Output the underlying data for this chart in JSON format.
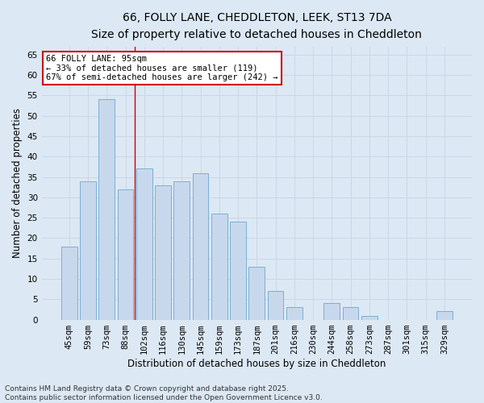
{
  "title_line1": "66, FOLLY LANE, CHEDDLETON, LEEK, ST13 7DA",
  "title_line2": "Size of property relative to detached houses in Cheddleton",
  "xlabel": "Distribution of detached houses by size in Cheddleton",
  "ylabel": "Number of detached properties",
  "categories": [
    "45sqm",
    "59sqm",
    "73sqm",
    "88sqm",
    "102sqm",
    "116sqm",
    "130sqm",
    "145sqm",
    "159sqm",
    "173sqm",
    "187sqm",
    "201sqm",
    "216sqm",
    "230sqm",
    "244sqm",
    "258sqm",
    "273sqm",
    "287sqm",
    "301sqm",
    "315sqm",
    "329sqm"
  ],
  "values": [
    18,
    34,
    54,
    32,
    37,
    33,
    34,
    36,
    26,
    24,
    13,
    7,
    3,
    0,
    4,
    3,
    1,
    0,
    0,
    0,
    2
  ],
  "bar_color": "#c8d8ec",
  "bar_edge_color": "#7bafd4",
  "grid_color": "#c8d4e4",
  "background_color": "#dce8f4",
  "annotation_box_color": "#ffffff",
  "annotation_box_edge_color": "#cc0000",
  "annotation_line1": "66 FOLLY LANE: 95sqm",
  "annotation_line2": "← 33% of detached houses are smaller (119)",
  "annotation_line3": "67% of semi-detached houses are larger (242) →",
  "vline_color": "#cc0000",
  "vline_x": 3.5,
  "ylim_max": 67,
  "yticks": [
    0,
    5,
    10,
    15,
    20,
    25,
    30,
    35,
    40,
    45,
    50,
    55,
    60,
    65
  ],
  "footer_line1": "Contains HM Land Registry data © Crown copyright and database right 2025.",
  "footer_line2": "Contains public sector information licensed under the Open Government Licence v3.0.",
  "title_fontsize": 10,
  "subtitle_fontsize": 9,
  "axis_label_fontsize": 8.5,
  "tick_fontsize": 7.5,
  "annotation_fontsize": 7.5,
  "footer_fontsize": 6.5
}
